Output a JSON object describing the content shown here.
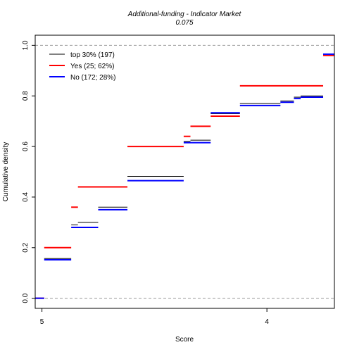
{
  "chart_data": {
    "type": "step",
    "title": "Additional-funding - Indicator Market",
    "subtitle": "0.075",
    "xlabel": "Score",
    "ylabel": "Cumulative density",
    "xlim": [
      5.03,
      3.7
    ],
    "ylim": [
      -0.04,
      1.04
    ],
    "x_ticks": [
      {
        "value": 5,
        "label": "5"
      },
      {
        "value": 4,
        "label": "4"
      }
    ],
    "y_ticks": [
      {
        "value": 0.0,
        "label": "0.0"
      },
      {
        "value": 0.2,
        "label": "0.2"
      },
      {
        "value": 0.4,
        "label": "0.4"
      },
      {
        "value": 0.6,
        "label": "0.6"
      },
      {
        "value": 0.8,
        "label": "0.8"
      },
      {
        "value": 1.0,
        "label": "1.0"
      }
    ],
    "reference_lines": [
      0.0,
      1.0
    ],
    "legend": {
      "position": "top-left",
      "entries": [
        {
          "label": "top 30% (197)",
          "color": "#000000"
        },
        {
          "label": "Yes (25; 62%)",
          "color": "#ff0000"
        },
        {
          "label": "No (172; 28%)",
          "color": "#0000ff"
        }
      ]
    },
    "series": [
      {
        "name": "top 30% (197)",
        "color": "#000000",
        "stroke_width": 1,
        "segments": [
          [
            5.05,
            4.99,
            0.0
          ],
          [
            4.99,
            4.87,
            0.157
          ],
          [
            4.87,
            4.84,
            0.29
          ],
          [
            4.84,
            4.75,
            0.3
          ],
          [
            4.75,
            4.62,
            0.36
          ],
          [
            4.62,
            4.37,
            0.482
          ],
          [
            4.37,
            4.34,
            0.62
          ],
          [
            4.34,
            4.25,
            0.625
          ],
          [
            4.25,
            4.12,
            0.73
          ],
          [
            4.12,
            3.94,
            0.77
          ],
          [
            3.94,
            3.88,
            0.78
          ],
          [
            3.88,
            3.85,
            0.795
          ],
          [
            3.85,
            3.75,
            0.8
          ],
          [
            3.75,
            3.68,
            0.965
          ],
          [
            3.68,
            3.65,
            1.0
          ]
        ]
      },
      {
        "name": "Yes (25; 62%)",
        "color": "#ff0000",
        "stroke_width": 2,
        "segments": [
          [
            5.05,
            4.99,
            0.0
          ],
          [
            4.99,
            4.87,
            0.2
          ],
          [
            4.87,
            4.84,
            0.36
          ],
          [
            4.84,
            4.62,
            0.44
          ],
          [
            4.62,
            4.37,
            0.6
          ],
          [
            4.37,
            4.34,
            0.64
          ],
          [
            4.34,
            4.25,
            0.68
          ],
          [
            4.25,
            4.12,
            0.72
          ],
          [
            4.12,
            3.75,
            0.84
          ],
          [
            3.75,
            3.68,
            0.96
          ],
          [
            3.68,
            3.65,
            1.0
          ]
        ]
      },
      {
        "name": "No (172; 28%)",
        "color": "#0000ff",
        "stroke_width": 2,
        "segments": [
          [
            5.05,
            4.99,
            0.0
          ],
          [
            4.99,
            4.87,
            0.152
          ],
          [
            4.87,
            4.75,
            0.28
          ],
          [
            4.75,
            4.62,
            0.35
          ],
          [
            4.62,
            4.37,
            0.465
          ],
          [
            4.37,
            4.25,
            0.615
          ],
          [
            4.25,
            4.12,
            0.733
          ],
          [
            4.12,
            3.94,
            0.762
          ],
          [
            3.94,
            3.88,
            0.775
          ],
          [
            3.88,
            3.85,
            0.79
          ],
          [
            3.85,
            3.75,
            0.795
          ],
          [
            3.75,
            3.68,
            0.965
          ],
          [
            3.68,
            3.65,
            1.0
          ]
        ]
      }
    ]
  }
}
